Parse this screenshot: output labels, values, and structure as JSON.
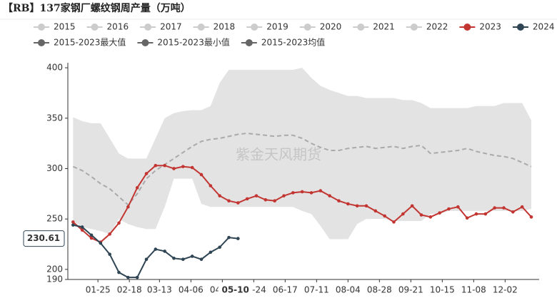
{
  "chart_data": {
    "type": "line",
    "title": "【RB】137家钢厂螺纹钢周产量（万吨）",
    "watermark": "紫金天风期货",
    "x": [
      6,
      13,
      20,
      27,
      34,
      41,
      48,
      55,
      62,
      69,
      76,
      83,
      90,
      97,
      104,
      111,
      118,
      125,
      132,
      139,
      146,
      153,
      160,
      167,
      174,
      181,
      188,
      195,
      202,
      209,
      216,
      223,
      230,
      237,
      244,
      251,
      258,
      265,
      272,
      279,
      286,
      293,
      300,
      307,
      314,
      321,
      328,
      335,
      342,
      349,
      356
    ],
    "xlim": [
      2,
      362
    ],
    "xticks": [
      {
        "value": 25,
        "label": "01-25"
      },
      {
        "value": 49,
        "label": "02-18"
      },
      {
        "value": 72,
        "label": "03-13"
      },
      {
        "value": 96,
        "label": "04-06"
      },
      {
        "value": 120,
        "label": "04-30"
      },
      {
        "value": 144,
        "label": "05-24"
      },
      {
        "value": 168,
        "label": "06-17"
      },
      {
        "value": 192,
        "label": "07-11"
      },
      {
        "value": 216,
        "label": "08-04"
      },
      {
        "value": 240,
        "label": "08-28"
      },
      {
        "value": 264,
        "label": "09-21"
      },
      {
        "value": 288,
        "label": "10-15"
      },
      {
        "value": 312,
        "label": "11-08"
      },
      {
        "value": 336,
        "label": "12-02"
      }
    ],
    "ylim": [
      190,
      405
    ],
    "yticks": [
      190,
      200,
      250,
      300,
      350,
      400
    ],
    "grid": false,
    "pointer": {
      "x": {
        "value": 130,
        "label": "05-10"
      },
      "y": 230.61
    },
    "series": [
      {
        "name": "2015",
        "color": "#cccccc",
        "visible": false
      },
      {
        "name": "2016",
        "color": "#cccccc",
        "visible": false
      },
      {
        "name": "2017",
        "color": "#cccccc",
        "visible": false
      },
      {
        "name": "2018",
        "color": "#cccccc",
        "visible": false
      },
      {
        "name": "2019",
        "color": "#cccccc",
        "visible": false
      },
      {
        "name": "2020",
        "color": "#cccccc",
        "visible": false
      },
      {
        "name": "2021",
        "color": "#cccccc",
        "visible": false
      },
      {
        "name": "2022",
        "color": "#cccccc",
        "visible": false
      },
      {
        "name": "2023",
        "color": "#c23531",
        "visible": true,
        "style": "line",
        "values": [
          247,
          239,
          231,
          227,
          235,
          246,
          262,
          281,
          295,
          303,
          303,
          300,
          302,
          301,
          294,
          283,
          273,
          268,
          266,
          270,
          273,
          269,
          268,
          273,
          276,
          277,
          276,
          278,
          273,
          268,
          265,
          263,
          263,
          258,
          253,
          247,
          255,
          263,
          254,
          252,
          256,
          260,
          262,
          251,
          255,
          255,
          261,
          261,
          257,
          262,
          252
        ]
      },
      {
        "name": "2024",
        "color": "#2f4554",
        "visible": true,
        "style": "line",
        "values": [
          244,
          242,
          234,
          226,
          215,
          197,
          192,
          192,
          210,
          220,
          218,
          211,
          210,
          213,
          210,
          217,
          222,
          231.6,
          230.61,
          null,
          null,
          null,
          null,
          null,
          null,
          null,
          null,
          null,
          null,
          null,
          null,
          null,
          null,
          null,
          null,
          null,
          null,
          null,
          null,
          null,
          null,
          null,
          null,
          null,
          null,
          null,
          null,
          null,
          null,
          null,
          null
        ]
      },
      {
        "name": "2015-2023最大值",
        "color": "#e3e3e3",
        "visible": true,
        "style": "upper",
        "values": [
          351,
          347,
          345,
          345,
          330,
          315,
          310,
          310,
          310,
          330,
          350,
          355,
          357,
          358,
          358,
          362,
          385,
          398,
          398,
          398,
          398,
          398,
          398,
          398,
          398,
          400,
          390,
          382,
          378,
          375,
          372,
          372,
          370,
          370,
          370,
          370,
          368,
          368,
          365,
          360,
          360,
          360,
          360,
          360,
          362,
          362,
          362,
          365,
          365,
          365,
          348
        ]
      },
      {
        "name": "2015-2023最小值",
        "color": "#ffffff",
        "visible": true,
        "style": "lower",
        "values": [
          248,
          242,
          240,
          238,
          235,
          250,
          245,
          242,
          240,
          240,
          262,
          290,
          290,
          290,
          265,
          262,
          262,
          262,
          262,
          262,
          262,
          262,
          262,
          262,
          262,
          258,
          255,
          243,
          230,
          230,
          230,
          245,
          250,
          250,
          250,
          248,
          248,
          248,
          248,
          255,
          255,
          258,
          258,
          258,
          258,
          258,
          258,
          258,
          258,
          258,
          260
        ]
      },
      {
        "name": "2015-2023均值",
        "color": "#aaaaaa",
        "visible": true,
        "style": "dashed",
        "values": [
          302,
          298,
          292,
          285,
          280,
          272,
          264,
          275,
          290,
          298,
          304,
          310,
          316,
          322,
          327,
          329,
          330,
          332,
          334,
          335,
          334,
          333,
          332,
          333,
          333,
          330,
          325,
          321,
          318,
          318,
          320,
          321,
          322,
          320,
          321,
          322,
          320,
          322,
          323,
          315,
          316,
          317,
          318,
          320,
          317,
          315,
          313,
          312,
          310,
          306,
          302
        ]
      }
    ]
  }
}
